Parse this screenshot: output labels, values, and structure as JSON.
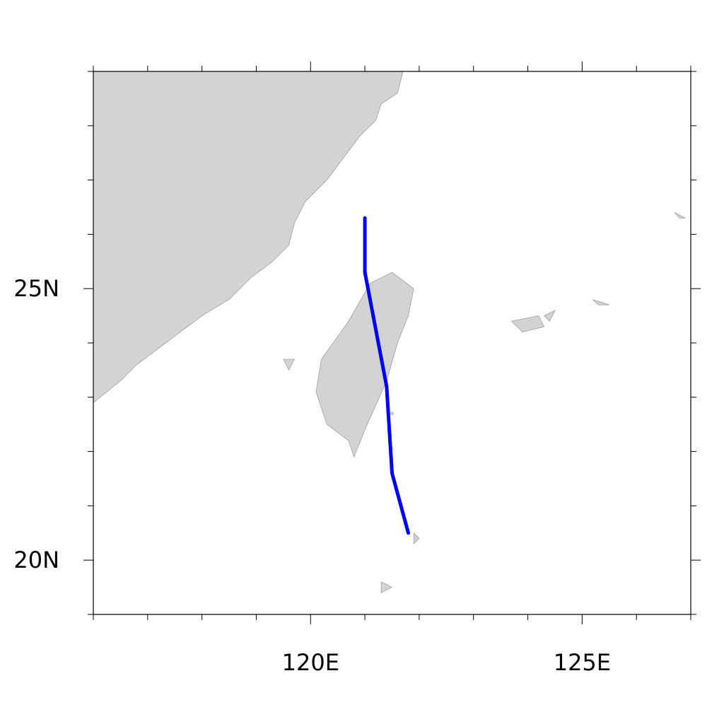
{
  "map": {
    "projection": "lat-lon",
    "lon_range": [
      116,
      127
    ],
    "lat_range": [
      19,
      29
    ],
    "background": "#ffffff",
    "land_color": "#d3d3d3",
    "coast_color": "#8a8a8a",
    "frame_color": "#000000"
  },
  "axes": {
    "x_ticks": [
      {
        "value": 120,
        "label": "120E"
      },
      {
        "value": 125,
        "label": "125E"
      }
    ],
    "y_ticks": [
      {
        "value": 20,
        "label": "20N"
      },
      {
        "value": 25,
        "label": "25N"
      }
    ],
    "x_minor_step": 1,
    "y_minor_step": 1
  },
  "track": {
    "color": "#0000ff",
    "points": [
      {
        "lon": 121.8,
        "lat": 20.5
      },
      {
        "lon": 121.5,
        "lat": 21.6
      },
      {
        "lon": 121.4,
        "lat": 23.2
      },
      {
        "lon": 121.0,
        "lat": 25.3
      },
      {
        "lon": 121.0,
        "lat": 26.3
      }
    ]
  },
  "land_regions": [
    {
      "name": "mainland-china",
      "points": [
        [
          116,
          29
        ],
        [
          121.7,
          29
        ],
        [
          121.6,
          28.6
        ],
        [
          121.3,
          28.4
        ],
        [
          121.2,
          28.1
        ],
        [
          120.9,
          27.8
        ],
        [
          120.6,
          27.4
        ],
        [
          120.3,
          27.0
        ],
        [
          119.9,
          26.6
        ],
        [
          119.7,
          26.2
        ],
        [
          119.6,
          25.8
        ],
        [
          119.3,
          25.5
        ],
        [
          118.9,
          25.2
        ],
        [
          118.5,
          24.8
        ],
        [
          118.0,
          24.5
        ],
        [
          117.6,
          24.2
        ],
        [
          117.2,
          23.9
        ],
        [
          116.8,
          23.6
        ],
        [
          116.5,
          23.3
        ],
        [
          116.0,
          22.9
        ]
      ]
    },
    {
      "name": "taiwan",
      "points": [
        [
          121.5,
          25.3
        ],
        [
          121.9,
          25.0
        ],
        [
          121.8,
          24.5
        ],
        [
          121.6,
          24.0
        ],
        [
          121.4,
          23.3
        ],
        [
          121.0,
          22.4
        ],
        [
          120.8,
          21.9
        ],
        [
          120.7,
          22.2
        ],
        [
          120.3,
          22.5
        ],
        [
          120.1,
          23.1
        ],
        [
          120.2,
          23.7
        ],
        [
          120.7,
          24.4
        ],
        [
          121.1,
          25.1
        ]
      ]
    },
    {
      "name": "penghu",
      "points": [
        [
          119.5,
          23.7
        ],
        [
          119.7,
          23.7
        ],
        [
          119.6,
          23.5
        ]
      ]
    },
    {
      "name": "ryukyu-iriomote",
      "points": [
        [
          123.7,
          24.4
        ],
        [
          124.2,
          24.5
        ],
        [
          124.3,
          24.3
        ],
        [
          123.9,
          24.2
        ]
      ]
    },
    {
      "name": "ryukyu-ishigaki",
      "points": [
        [
          124.3,
          24.5
        ],
        [
          124.5,
          24.6
        ],
        [
          124.4,
          24.4
        ]
      ]
    },
    {
      "name": "ryukyu-miyako",
      "points": [
        [
          125.2,
          24.8
        ],
        [
          125.5,
          24.7
        ],
        [
          125.3,
          24.7
        ]
      ]
    },
    {
      "name": "okinawa-tip",
      "points": [
        [
          126.7,
          26.4
        ],
        [
          126.9,
          26.3
        ],
        [
          126.8,
          26.3
        ]
      ]
    },
    {
      "name": "batanes",
      "points": [
        [
          121.9,
          20.5
        ],
        [
          122.0,
          20.4
        ],
        [
          121.9,
          20.3
        ]
      ]
    },
    {
      "name": "babuyan",
      "points": [
        [
          121.3,
          19.6
        ],
        [
          121.5,
          19.5
        ],
        [
          121.3,
          19.4
        ]
      ]
    },
    {
      "name": "green-island",
      "points": [
        [
          121.5,
          22.7
        ],
        [
          121.5,
          22.6
        ]
      ]
    }
  ]
}
